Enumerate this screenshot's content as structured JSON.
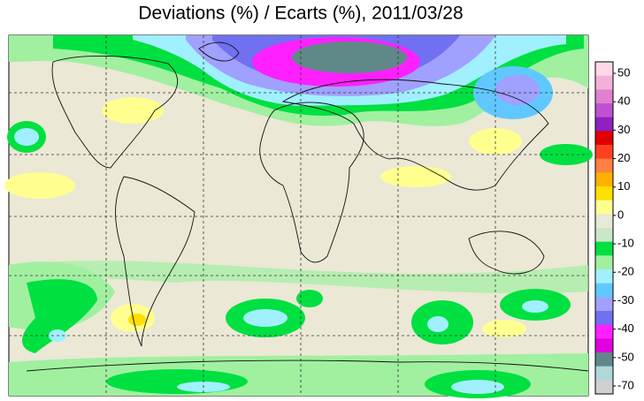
{
  "title": "Deviations (%) / Ecarts (%), 2011/03/28",
  "colorbar": {
    "ticks": [
      50,
      40,
      30,
      20,
      10,
      0,
      -10,
      -20,
      -30,
      -40,
      -50,
      -70
    ],
    "colors": [
      "#ffd8e8",
      "#f4b0d8",
      "#e080d0",
      "#c050d0",
      "#9020c0",
      "#e00000",
      "#ff4020",
      "#ff8040",
      "#ffb000",
      "#ffe000",
      "#ffff90",
      "#e8e8d8",
      "#c8e8c8",
      "#00e040",
      "#a0f0a0",
      "#a0f0ff",
      "#60c8ff",
      "#a0a0ff",
      "#7070f0",
      "#ff20ff",
      "#e000e0",
      "#608888",
      "#b0d8d8",
      "#d0d0d0"
    ]
  }
}
